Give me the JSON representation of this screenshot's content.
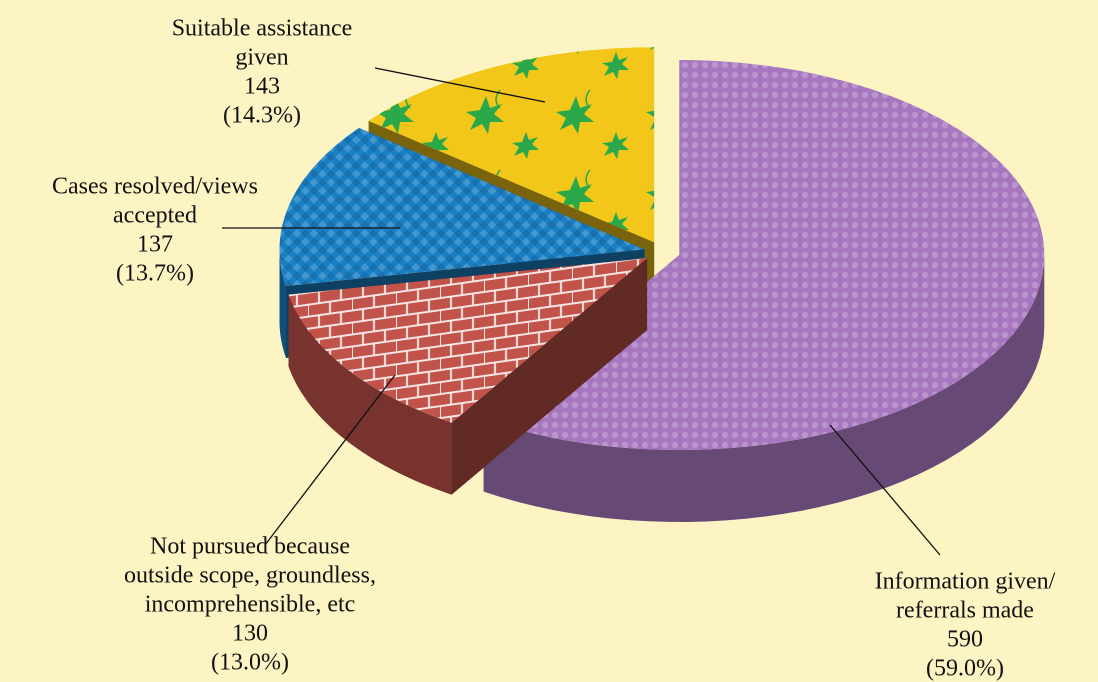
{
  "chart_data": {
    "type": "pie",
    "categories": [
      [
        "Information given/",
        "referrals made"
      ],
      [
        "Not pursued because",
        "outside scope, groundless,",
        "incomprehensible, etc"
      ],
      [
        "Cases resolved/views",
        "accepted"
      ],
      [
        "Suitable assistance",
        "given"
      ]
    ],
    "values": [
      590,
      130,
      137,
      143
    ],
    "percent_labels": [
      "(59.0%)",
      "(13.0%)",
      "(13.7%)",
      "(14.3%)"
    ],
    "colors": [
      "#a676bf",
      "#c2534a",
      "#1b7fc4",
      "#f2c71a"
    ]
  }
}
